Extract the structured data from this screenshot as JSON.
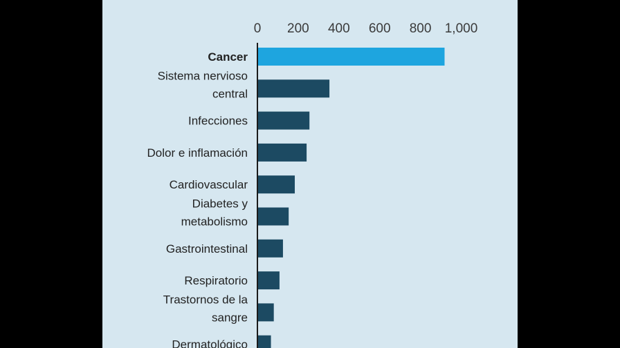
{
  "chart_data": {
    "type": "bar",
    "orientation": "horizontal",
    "title": "",
    "xlabel": "",
    "ylabel": "",
    "xlim": [
      0,
      1000
    ],
    "xticks": [
      0,
      200,
      400,
      600,
      800,
      1000
    ],
    "xtick_labels": [
      "0",
      "200",
      "400",
      "600",
      "800",
      "1,000"
    ],
    "categories": [
      [
        "Cancer"
      ],
      [
        "Sistema nervioso",
        "central"
      ],
      [
        "Infecciones"
      ],
      [
        "Dolor e inflamación"
      ],
      [
        "Cardiovascular"
      ],
      [
        "Diabetes y",
        "metabolismo"
      ],
      [
        "Gastrointestinal"
      ],
      [
        "Respiratorio"
      ],
      [
        "Trastornos de la",
        "sangre"
      ],
      [
        "Dermatológico"
      ]
    ],
    "values": [
      915,
      350,
      252,
      238,
      180,
      150,
      122,
      105,
      77,
      63
    ],
    "highlight_index": 0,
    "colors": {
      "highlight": "#1ea5df",
      "bar": "#1c4a62",
      "background": "#d6e7f0",
      "axis": "#1a1a1a"
    },
    "grid": false
  }
}
